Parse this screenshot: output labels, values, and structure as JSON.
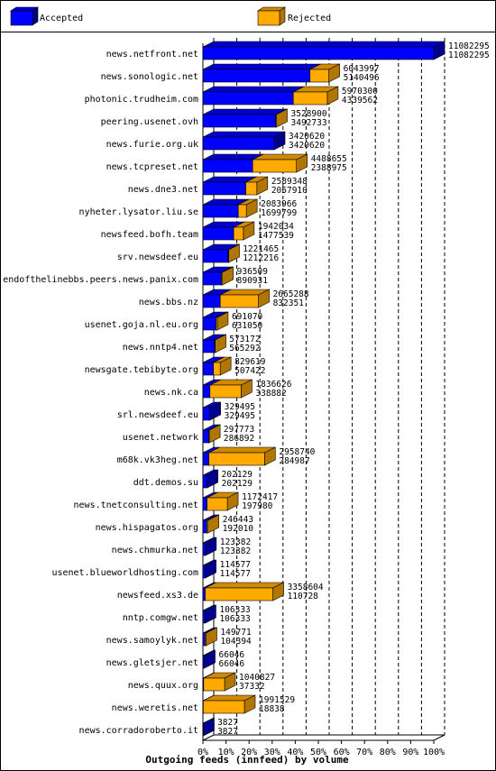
{
  "chart_data": {
    "type": "bar",
    "orientation": "horizontal",
    "title": "Outgoing feeds (innfeed) by volume",
    "legend": [
      "Accepted",
      "Rejected"
    ],
    "colors": {
      "accepted": "#0000ff",
      "rejected": "#ffaa00"
    },
    "x_ticks": [
      "0%",
      "10%",
      "20%",
      "30%",
      "40%",
      "50%",
      "60%",
      "70%",
      "80%",
      "90%",
      "100%"
    ],
    "xlim": [
      0,
      100
    ],
    "max_value": 11082295,
    "rows": [
      {
        "name": "news.netfront.net",
        "total": 11082295,
        "accepted": 11082295
      },
      {
        "name": "news.sonologic.net",
        "total": 6043997,
        "accepted": 5140496
      },
      {
        "name": "photonic.trudheim.com",
        "total": 5970300,
        "accepted": 4339562
      },
      {
        "name": "peering.usenet.ovh",
        "total": 3528900,
        "accepted": 3492733
      },
      {
        "name": "news.furie.org.uk",
        "total": 3420620,
        "accepted": 3420620
      },
      {
        "name": "news.tcpreset.net",
        "total": 4488655,
        "accepted": 2388975
      },
      {
        "name": "news.dne3.net",
        "total": 2589348,
        "accepted": 2057910
      },
      {
        "name": "nyheter.lysator.liu.se",
        "total": 2083966,
        "accepted": 1699799
      },
      {
        "name": "newsfeed.bofh.team",
        "total": 1942034,
        "accepted": 1477539
      },
      {
        "name": "srv.newsdeef.eu",
        "total": 1221465,
        "accepted": 1212216
      },
      {
        "name": "endofthelinebbs.peers.news.panix.com",
        "total": 936509,
        "accepted": 890931
      },
      {
        "name": "news.bbs.nz",
        "total": 2665288,
        "accepted": 832351
      },
      {
        "name": "usenet.goja.nl.eu.org",
        "total": 691070,
        "accepted": 631050
      },
      {
        "name": "news.nntp4.net",
        "total": 573172,
        "accepted": 565292
      },
      {
        "name": "newsgate.tebibyte.org",
        "total": 829619,
        "accepted": 507422
      },
      {
        "name": "news.nk.ca",
        "total": 1836626,
        "accepted": 338882
      },
      {
        "name": "srl.newsdeef.eu",
        "total": 329495,
        "accepted": 329495
      },
      {
        "name": "usenet.network",
        "total": 297773,
        "accepted": 286892
      },
      {
        "name": "m68k.vk3heg.net",
        "total": 2958740,
        "accepted": 284987
      },
      {
        "name": "ddt.demos.su",
        "total": 202129,
        "accepted": 202129
      },
      {
        "name": "news.tnetconsulting.net",
        "total": 1172417,
        "accepted": 197980
      },
      {
        "name": "news.hispagatos.org",
        "total": 246443,
        "accepted": 192010
      },
      {
        "name": "news.chmurka.net",
        "total": 123382,
        "accepted": 123382
      },
      {
        "name": "usenet.blueworldhosting.com",
        "total": 114577,
        "accepted": 114577
      },
      {
        "name": "newsfeed.xs3.de",
        "total": 3358604,
        "accepted": 110728
      },
      {
        "name": "nntp.comgw.net",
        "total": 106333,
        "accepted": 106333
      },
      {
        "name": "news.samoylyk.net",
        "total": 149771,
        "accepted": 104394
      },
      {
        "name": "news.gletsjer.net",
        "total": 66046,
        "accepted": 66046
      },
      {
        "name": "news.quux.org",
        "total": 1040827,
        "accepted": 37332
      },
      {
        "name": "news.weretis.net",
        "total": 1991529,
        "accepted": 18838
      },
      {
        "name": "news.corradoroberto.it",
        "total": 3827,
        "accepted": 3827
      }
    ]
  }
}
